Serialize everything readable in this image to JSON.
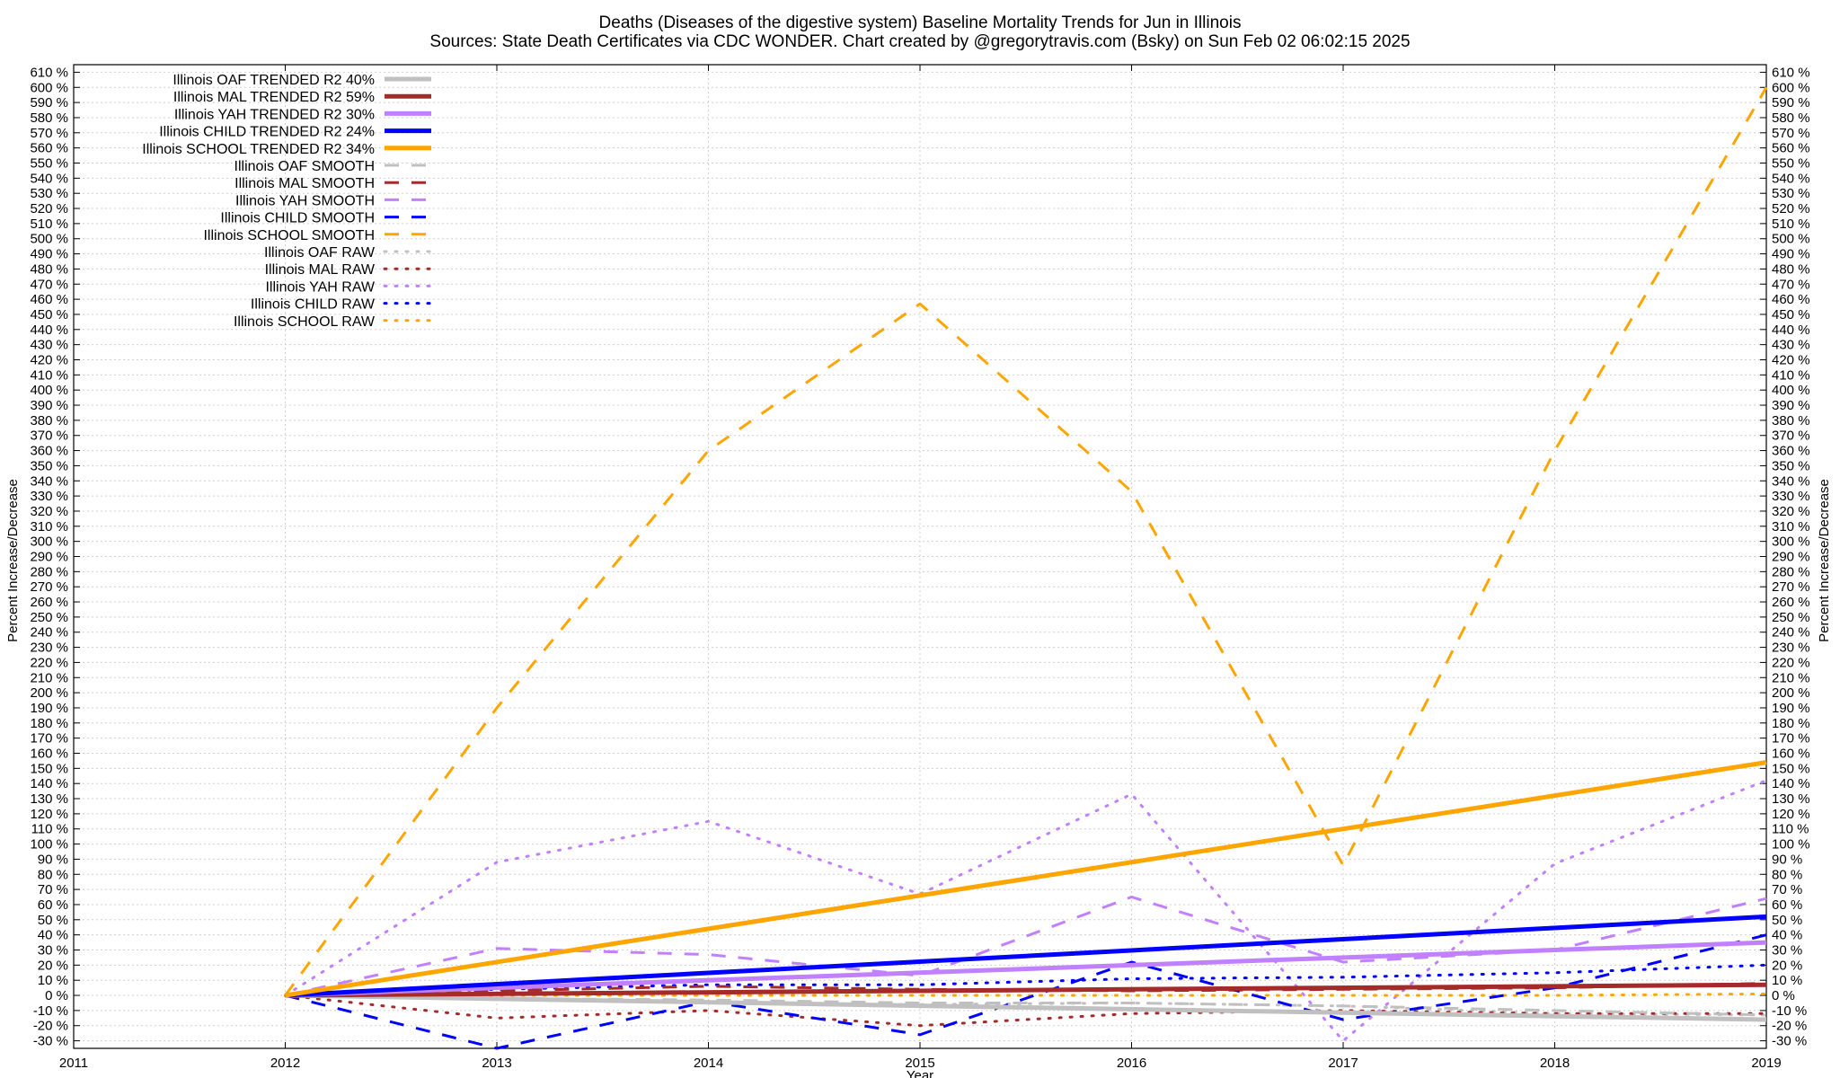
{
  "chart_data": {
    "type": "line",
    "title_line1": "Deaths (Diseases of the digestive system)  Baseline Mortality Trends for Jun in Illinois",
    "title_line2": "Sources: State Death Certificates via CDC WONDER.              Chart created by @gregorytravis.com (Bsky) on Sun Feb 02 06:02:15 2025",
    "xlabel": "Year",
    "ylabel": "Percent Increase/Decrease",
    "ylabel_right": "Percent Increase/Decrease",
    "xlim": [
      2011,
      2019
    ],
    "ylim": [
      -35,
      615
    ],
    "x_ticks": [
      2011,
      2012,
      2013,
      2014,
      2015,
      2016,
      2017,
      2018,
      2019
    ],
    "y_tick_start": -30,
    "y_tick_end": 610,
    "y_tick_step": 10,
    "y_tick_suffix": " %",
    "grid": true,
    "legend_position": "top-left",
    "series": [
      {
        "name": "Illinois OAF TRENDED R2  40%",
        "style": "solid",
        "color": "#c0c0c0",
        "x": [
          2012,
          2019
        ],
        "values": [
          0,
          -16
        ]
      },
      {
        "name": "Illinois MAL TRENDED R2  59%",
        "style": "solid",
        "color": "#a52a2a",
        "x": [
          2012,
          2019
        ],
        "values": [
          0,
          7
        ]
      },
      {
        "name": "Illinois YAH TRENDED R2  30%",
        "style": "solid",
        "color": "#c080ff",
        "x": [
          2012,
          2019
        ],
        "values": [
          0,
          35
        ]
      },
      {
        "name": "Illinois CHILD TRENDED R2  24%",
        "style": "solid",
        "color": "#0000ff",
        "x": [
          2012,
          2019
        ],
        "values": [
          0,
          52
        ]
      },
      {
        "name": "Illinois SCHOOL TRENDED R2  34%",
        "style": "solid",
        "color": "#ffa500",
        "x": [
          2012,
          2019
        ],
        "values": [
          0,
          154
        ]
      },
      {
        "name": "Illinois OAF SMOOTH",
        "style": "dash",
        "color": "#c0c0c0",
        "x": [
          2012,
          2013,
          2014,
          2015,
          2016,
          2017,
          2018,
          2019
        ],
        "values": [
          0,
          -2,
          -3,
          -5,
          -5,
          -7,
          -10,
          -13
        ]
      },
      {
        "name": "Illinois MAL SMOOTH",
        "style": "dash",
        "color": "#a52a2a",
        "x": [
          2012,
          2013,
          2014,
          2015,
          2016,
          2017,
          2018,
          2019
        ],
        "values": [
          0,
          3,
          6,
          4,
          3,
          4,
          5,
          8
        ]
      },
      {
        "name": "Illinois YAH SMOOTH",
        "style": "dash",
        "color": "#c080ff",
        "x": [
          2012,
          2013,
          2014,
          2015,
          2016,
          2017,
          2018,
          2019
        ],
        "values": [
          0,
          31,
          27,
          13,
          65,
          22,
          30,
          64
        ]
      },
      {
        "name": "Illinois CHILD SMOOTH",
        "style": "dash",
        "color": "#0000ff",
        "x": [
          2012,
          2013,
          2014,
          2015,
          2016,
          2017,
          2018,
          2019
        ],
        "values": [
          0,
          -35,
          -4,
          -26,
          22,
          -16,
          5,
          40
        ]
      },
      {
        "name": "Illinois SCHOOL SMOOTH",
        "style": "dash",
        "color": "#ffa500",
        "x": [
          2012,
          2013,
          2014,
          2015,
          2016,
          2017,
          2018,
          2019
        ],
        "values": [
          0,
          190,
          360,
          457,
          333,
          86,
          360,
          600
        ]
      },
      {
        "name": "Illinois OAF RAW",
        "style": "dot",
        "color": "#c0c0c0",
        "x": [
          2012,
          2013,
          2014,
          2015,
          2016,
          2017,
          2018,
          2019
        ],
        "values": [
          0,
          -2,
          -5,
          -6,
          -5,
          -7,
          -12,
          -13
        ]
      },
      {
        "name": "Illinois MAL RAW",
        "style": "dot",
        "color": "#a52a2a",
        "x": [
          2012,
          2013,
          2014,
          2015,
          2016,
          2017,
          2018,
          2019
        ],
        "values": [
          0,
          -15,
          -10,
          -20,
          -12,
          -10,
          -12,
          -12
        ]
      },
      {
        "name": "Illinois YAH RAW",
        "style": "dot",
        "color": "#c080ff",
        "x": [
          2012,
          2013,
          2014,
          2015,
          2016,
          2017,
          2018,
          2019
        ],
        "values": [
          0,
          88,
          115,
          67,
          133,
          -30,
          87,
          142
        ]
      },
      {
        "name": "Illinois CHILD RAW",
        "style": "dot",
        "color": "#0000ff",
        "x": [
          2012,
          2013,
          2014,
          2015,
          2016,
          2017,
          2018,
          2019
        ],
        "values": [
          0,
          4,
          7,
          7,
          11,
          12,
          15,
          20
        ]
      },
      {
        "name": "Illinois SCHOOL RAW",
        "style": "dot",
        "color": "#ffa500",
        "x": [
          2012,
          2013,
          2014,
          2015,
          2016,
          2017,
          2018,
          2019
        ],
        "values": [
          0,
          0,
          0,
          0,
          0,
          0,
          0,
          1
        ]
      }
    ]
  }
}
